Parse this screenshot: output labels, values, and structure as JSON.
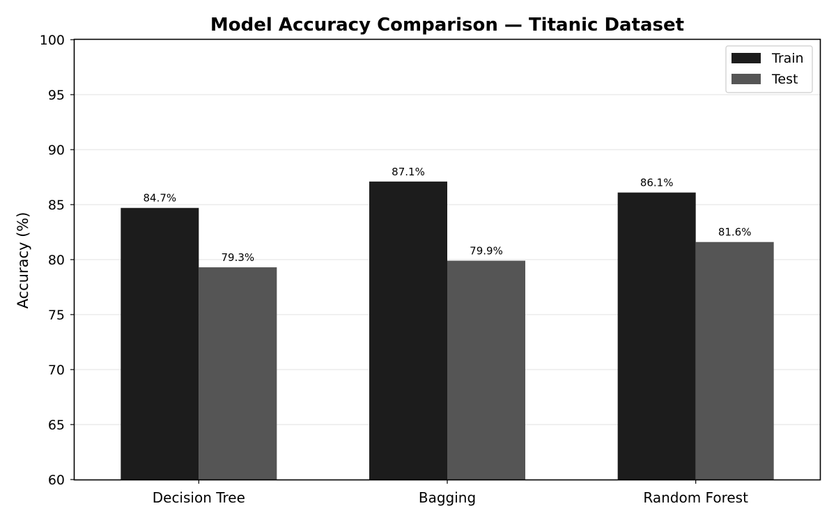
{
  "chart_data": {
    "type": "bar",
    "title": "Model Accuracy Comparison — Titanic Dataset",
    "xlabel": "",
    "ylabel": "Accuracy (%)",
    "categories": [
      "Decision Tree",
      "Bagging",
      "Random Forest"
    ],
    "series": [
      {
        "name": "Train",
        "values": [
          84.7,
          87.1,
          86.1
        ],
        "labels": [
          "84.7%",
          "87.1%",
          "86.1%"
        ],
        "color": "#1c1c1c"
      },
      {
        "name": "Test",
        "values": [
          79.3,
          79.9,
          81.6
        ],
        "labels": [
          "79.3%",
          "79.9%",
          "81.6%"
        ],
        "color": "#555555"
      }
    ],
    "ylim": [
      60,
      100
    ],
    "yticks": [
      60,
      65,
      70,
      75,
      80,
      85,
      90,
      95,
      100
    ],
    "grid": true,
    "grid_axis": "y",
    "legend_position": "top-right"
  }
}
